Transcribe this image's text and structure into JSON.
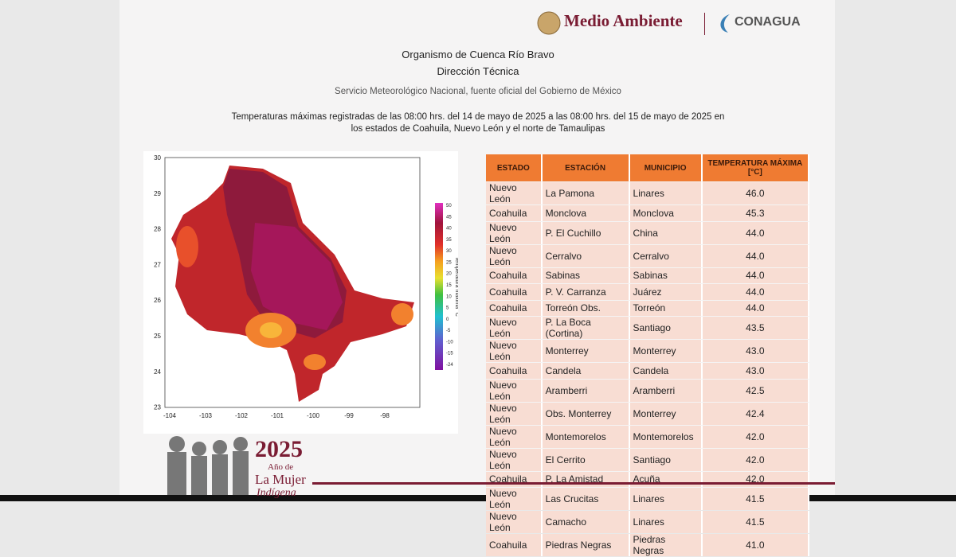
{
  "header": {
    "logo_left": "Medio Ambiente",
    "logo_right": "CONAGUA",
    "organism": "Organismo de Cuenca Río Bravo",
    "department": "Dirección Técnica",
    "source": "Servicio Meteorológico Nacional, fuente oficial del Gobierno de México",
    "description_line1": "Temperaturas máximas registradas de las 08:00 hrs. del 14 de mayo de 2025 a las 08:00 hrs. del 15 de mayo de 2025 en",
    "description_line2": "los estados de Coahuila, Nuevo León y el norte de Tamaulipas"
  },
  "map": {
    "x_labels": [
      "-104",
      "-103",
      "-102",
      "-101",
      "-100",
      "-99",
      "-98"
    ],
    "y_labels": [
      "30",
      "29",
      "28",
      "27",
      "26",
      "25",
      "24",
      "23"
    ],
    "colorbar_title": "Temperatura máxima °C",
    "colorbar_labels": [
      "50",
      "45",
      "40",
      "35",
      "30",
      "25",
      "20",
      "15",
      "10",
      "5",
      "0",
      "-5",
      "-10",
      "-15",
      "-24"
    ]
  },
  "table": {
    "columns": [
      "ESTADO",
      "ESTACIÓN",
      "MUNICIPIO",
      "TEMPERATURA MÁXIMA [°C]"
    ],
    "rows": [
      [
        "Nuevo León",
        "La Pamona",
        "Linares",
        "46.0"
      ],
      [
        "Coahuila",
        "Monclova",
        "Monclova",
        "45.3"
      ],
      [
        "Nuevo León",
        "P. El Cuchillo",
        "China",
        "44.0"
      ],
      [
        "Nuevo León",
        "Cerralvo",
        "Cerralvo",
        "44.0"
      ],
      [
        "Coahuila",
        "Sabinas",
        "Sabinas",
        "44.0"
      ],
      [
        "Coahuila",
        "P. V. Carranza",
        "Juárez",
        "44.0"
      ],
      [
        "Coahuila",
        "Torreón Obs.",
        "Torreón",
        "44.0"
      ],
      [
        "Nuevo León",
        "P. La Boca (Cortina)",
        "Santiago",
        "43.5"
      ],
      [
        "Nuevo León",
        "Monterrey",
        "Monterrey",
        "43.0"
      ],
      [
        "Coahuila",
        "Candela",
        "Candela",
        "43.0"
      ],
      [
        "Nuevo León",
        "Aramberri",
        "Aramberri",
        "42.5"
      ],
      [
        "Nuevo León",
        "Obs. Monterrey",
        "Monterrey",
        "42.4"
      ],
      [
        "Nuevo León",
        "Montemorelos",
        "Montemorelos",
        "42.0"
      ],
      [
        "Nuevo León",
        "El Cerrito",
        "Santiago",
        "42.0"
      ],
      [
        "Coahuila",
        "P. La Amistad",
        "Acuña",
        "42.0"
      ],
      [
        "Nuevo León",
        "Las Crucitas",
        "Linares",
        "41.5"
      ],
      [
        "Nuevo León",
        "Camacho",
        "Linares",
        "41.5"
      ],
      [
        "Coahuila",
        "Piedras Negras",
        "Piedras Negras",
        "41.0"
      ]
    ]
  },
  "footer": {
    "year": "2025",
    "line1": "Año de",
    "line2": "La Mujer",
    "line3": "Indígena"
  }
}
